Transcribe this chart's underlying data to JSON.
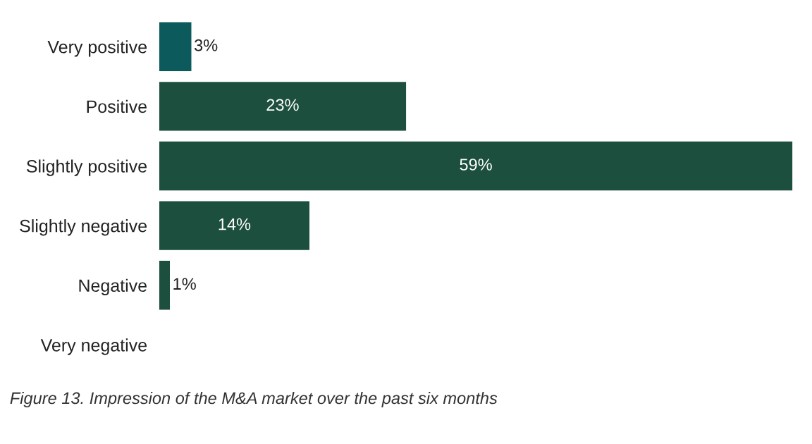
{
  "chart_data": {
    "type": "bar",
    "orientation": "horizontal",
    "categories": [
      "Very positive",
      "Positive",
      "Slightly positive",
      "Slightly negative",
      "Negative",
      "Very negative"
    ],
    "values": [
      3,
      23,
      59,
      14,
      1,
      0
    ],
    "colors": [
      "#0c5a5c",
      "#1d4f3f",
      "#1d4f3f",
      "#1d4f3f",
      "#1d4f3f",
      "#1d4f3f"
    ],
    "value_labels": [
      "3%",
      "23%",
      "59%",
      "14%",
      "1%",
      null
    ],
    "annotations": [
      "Figure 13. Impression of the M&A market over the past six months"
    ],
    "grid": false,
    "legend": false
  }
}
